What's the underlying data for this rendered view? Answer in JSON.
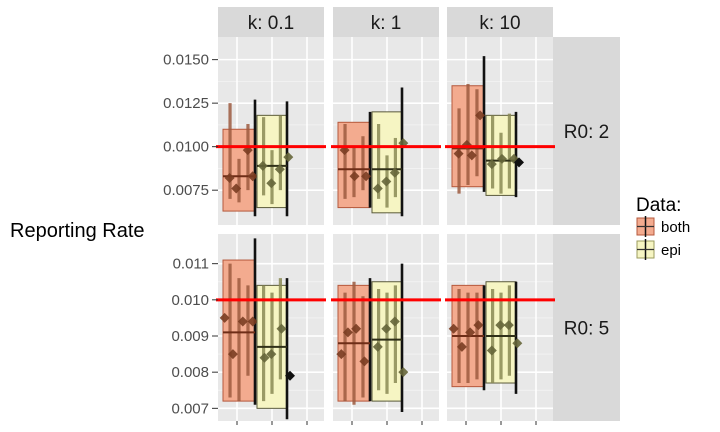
{
  "chart_data": {
    "type": "boxplot-faceted",
    "ylabel": "Reporting Rate",
    "reference_line": {
      "value": 0.01,
      "color": "#ff0000"
    },
    "col_facets": [
      "k: 0.1",
      "k: 1",
      "k: 10"
    ],
    "row_facets": [
      {
        "label": "R0: 2",
        "ylim": [
          0.0055,
          0.0163
        ],
        "ticks": [
          0.0075,
          0.01,
          0.0125,
          0.015
        ],
        "tick_labels": [
          "0.0075",
          "0.0100",
          "0.0125",
          "0.0150"
        ]
      },
      {
        "label": "R0: 5",
        "ylim": [
          0.00665,
          0.01182
        ],
        "ticks": [
          0.007,
          0.008,
          0.009,
          0.01,
          0.011
        ],
        "tick_labels": [
          "0.007",
          "0.008",
          "0.009",
          "0.010",
          "0.011"
        ]
      }
    ],
    "legend": {
      "title": "Data:",
      "position": "right",
      "entries": [
        {
          "label": "both",
          "fill": "#f3ab8f",
          "stroke": "#b5583c"
        },
        {
          "label": "epi",
          "fill": "#f6f5c3",
          "stroke": "#9b9b5e"
        }
      ]
    },
    "panels": [
      {
        "row": 0,
        "col": 0,
        "boxes": [
          {
            "series": "both",
            "box": [
              0.0063,
              0.011
            ],
            "median": 0.0083,
            "whisker": [
              0.006,
              0.0127
            ],
            "intervals": [
              [
                0.007,
                0.0125
              ],
              [
                0.0068,
                0.0093
              ],
              [
                0.0075,
                0.0113
              ]
            ],
            "points": [
              [
                0.2,
                0.0082
              ],
              [
                0.4,
                0.0076
              ],
              [
                0.75,
                0.0098
              ],
              [
                0.9,
                0.0083
              ]
            ]
          },
          {
            "series": "epi",
            "box": [
              0.0065,
              0.0118
            ],
            "median": 0.0089,
            "whisker": [
              0.006,
              0.0126
            ],
            "intervals": [
              [
                0.0072,
                0.0117
              ],
              [
                0.0067,
                0.0098
              ],
              [
                0.0075,
                0.0118
              ]
            ],
            "points": [
              [
                0.2,
                0.0089
              ],
              [
                0.45,
                0.0079
              ],
              [
                0.7,
                0.0087
              ],
              [
                0.95,
                0.0094
              ]
            ]
          }
        ]
      },
      {
        "row": 0,
        "col": 1,
        "boxes": [
          {
            "series": "both",
            "box": [
              0.0065,
              0.0114
            ],
            "median": 0.0087,
            "whisker": [
              0.0065,
              0.012
            ],
            "intervals": [
              [
                0.007,
                0.0113
              ],
              [
                0.0071,
                0.01
              ],
              [
                0.0075,
                0.0106
              ]
            ],
            "points": [
              [
                0.2,
                0.0098
              ],
              [
                0.5,
                0.0083
              ],
              [
                0.85,
                0.0083
              ]
            ]
          },
          {
            "series": "epi",
            "box": [
              0.0062,
              0.012
            ],
            "median": 0.0087,
            "whisker": [
              0.006,
              0.0134
            ],
            "intervals": [
              [
                0.007,
                0.0113
              ],
              [
                0.0065,
                0.0095
              ],
              [
                0.0071,
                0.0105
              ]
            ],
            "points": [
              [
                0.2,
                0.0076
              ],
              [
                0.45,
                0.008
              ],
              [
                0.7,
                0.0085
              ],
              [
                0.95,
                0.0102
              ]
            ]
          }
        ]
      },
      {
        "row": 0,
        "col": 2,
        "boxes": [
          {
            "series": "both",
            "box": [
              0.0077,
              0.0135
            ],
            "median": 0.0099,
            "whisker": [
              0.0074,
              0.0152
            ],
            "intervals": [
              [
                0.0073,
                0.0122
              ],
              [
                0.0078,
                0.0136
              ],
              [
                0.0083,
                0.0133
              ]
            ],
            "points": [
              [
                0.2,
                0.0096
              ],
              [
                0.45,
                0.0101
              ],
              [
                0.6,
                0.0095
              ],
              [
                0.85,
                0.0118
              ]
            ]
          },
          {
            "series": "epi",
            "box": [
              0.0072,
              0.0118
            ],
            "median": 0.0092,
            "whisker": [
              0.0071,
              0.012
            ],
            "intervals": [
              [
                0.0076,
                0.0118
              ],
              [
                0.0073,
                0.0108
              ],
              [
                0.0076,
                0.0119
              ]
            ],
            "points": [
              [
                0.2,
                0.009
              ],
              [
                0.5,
                0.0093
              ],
              [
                0.85,
                0.0093
              ],
              [
                1.0,
                0.0091
              ]
            ]
          }
        ]
      },
      {
        "row": 1,
        "col": 0,
        "boxes": [
          {
            "series": "both",
            "box": [
              0.0072,
              0.0111
            ],
            "median": 0.0091,
            "whisker": [
              0.0071,
              0.0117
            ],
            "intervals": [
              [
                0.0073,
                0.011
              ],
              [
                0.0072,
                0.0106
              ],
              [
                0.0079,
                0.0104
              ]
            ],
            "points": [
              [
                0.05,
                0.0095
              ],
              [
                0.3,
                0.0085
              ],
              [
                0.6,
                0.0094
              ],
              [
                0.9,
                0.0094
              ]
            ]
          },
          {
            "series": "epi",
            "box": [
              0.007,
              0.0104
            ],
            "median": 0.0087,
            "whisker": [
              0.0067,
              0.0106
            ],
            "intervals": [
              [
                0.0072,
                0.0104
              ],
              [
                0.0074,
                0.0102
              ],
              [
                0.0078,
                0.0106
              ]
            ],
            "points": [
              [
                0.25,
                0.0084
              ],
              [
                0.45,
                0.0085
              ],
              [
                0.75,
                0.0092
              ],
              [
                1.0,
                0.0079
              ]
            ]
          }
        ]
      },
      {
        "row": 1,
        "col": 1,
        "boxes": [
          {
            "series": "both",
            "box": [
              0.0072,
              0.0104
            ],
            "median": 0.0088,
            "whisker": [
              0.0072,
              0.0106
            ],
            "intervals": [
              [
                0.0072,
                0.0102
              ],
              [
                0.0071,
                0.0105
              ],
              [
                0.0073,
                0.0101
              ]
            ],
            "points": [
              [
                0.1,
                0.0085
              ],
              [
                0.3,
                0.0091
              ],
              [
                0.55,
                0.0092
              ],
              [
                0.8,
                0.0083
              ]
            ]
          },
          {
            "series": "epi",
            "box": [
              0.0072,
              0.0105
            ],
            "median": 0.0089,
            "whisker": [
              0.0069,
              0.011
            ],
            "intervals": [
              [
                0.0075,
                0.0103
              ],
              [
                0.0074,
                0.0102
              ],
              [
                0.0077,
                0.0104
              ]
            ],
            "points": [
              [
                0.2,
                0.0087
              ],
              [
                0.45,
                0.0092
              ],
              [
                0.7,
                0.0094
              ],
              [
                0.95,
                0.008
              ]
            ]
          }
        ]
      },
      {
        "row": 1,
        "col": 2,
        "boxes": [
          {
            "series": "both",
            "box": [
              0.0076,
              0.0104
            ],
            "median": 0.009,
            "whisker": [
              0.0075,
              0.0104
            ],
            "intervals": [
              [
                0.0077,
                0.0103
              ],
              [
                0.0077,
                0.0102
              ],
              [
                0.0078,
                0.0102
              ]
            ],
            "points": [
              [
                0.05,
                0.0092
              ],
              [
                0.3,
                0.0087
              ],
              [
                0.55,
                0.0091
              ],
              [
                0.8,
                0.0093
              ]
            ]
          },
          {
            "series": "epi",
            "box": [
              0.0077,
              0.0105
            ],
            "median": 0.009,
            "whisker": [
              0.0074,
              0.0105
            ],
            "intervals": [
              [
                0.0077,
                0.0103
              ],
              [
                0.0078,
                0.0102
              ],
              [
                0.0079,
                0.0104
              ]
            ],
            "points": [
              [
                0.2,
                0.0086
              ],
              [
                0.45,
                0.0093
              ],
              [
                0.7,
                0.0093
              ],
              [
                0.95,
                0.0088
              ]
            ]
          }
        ]
      }
    ]
  }
}
